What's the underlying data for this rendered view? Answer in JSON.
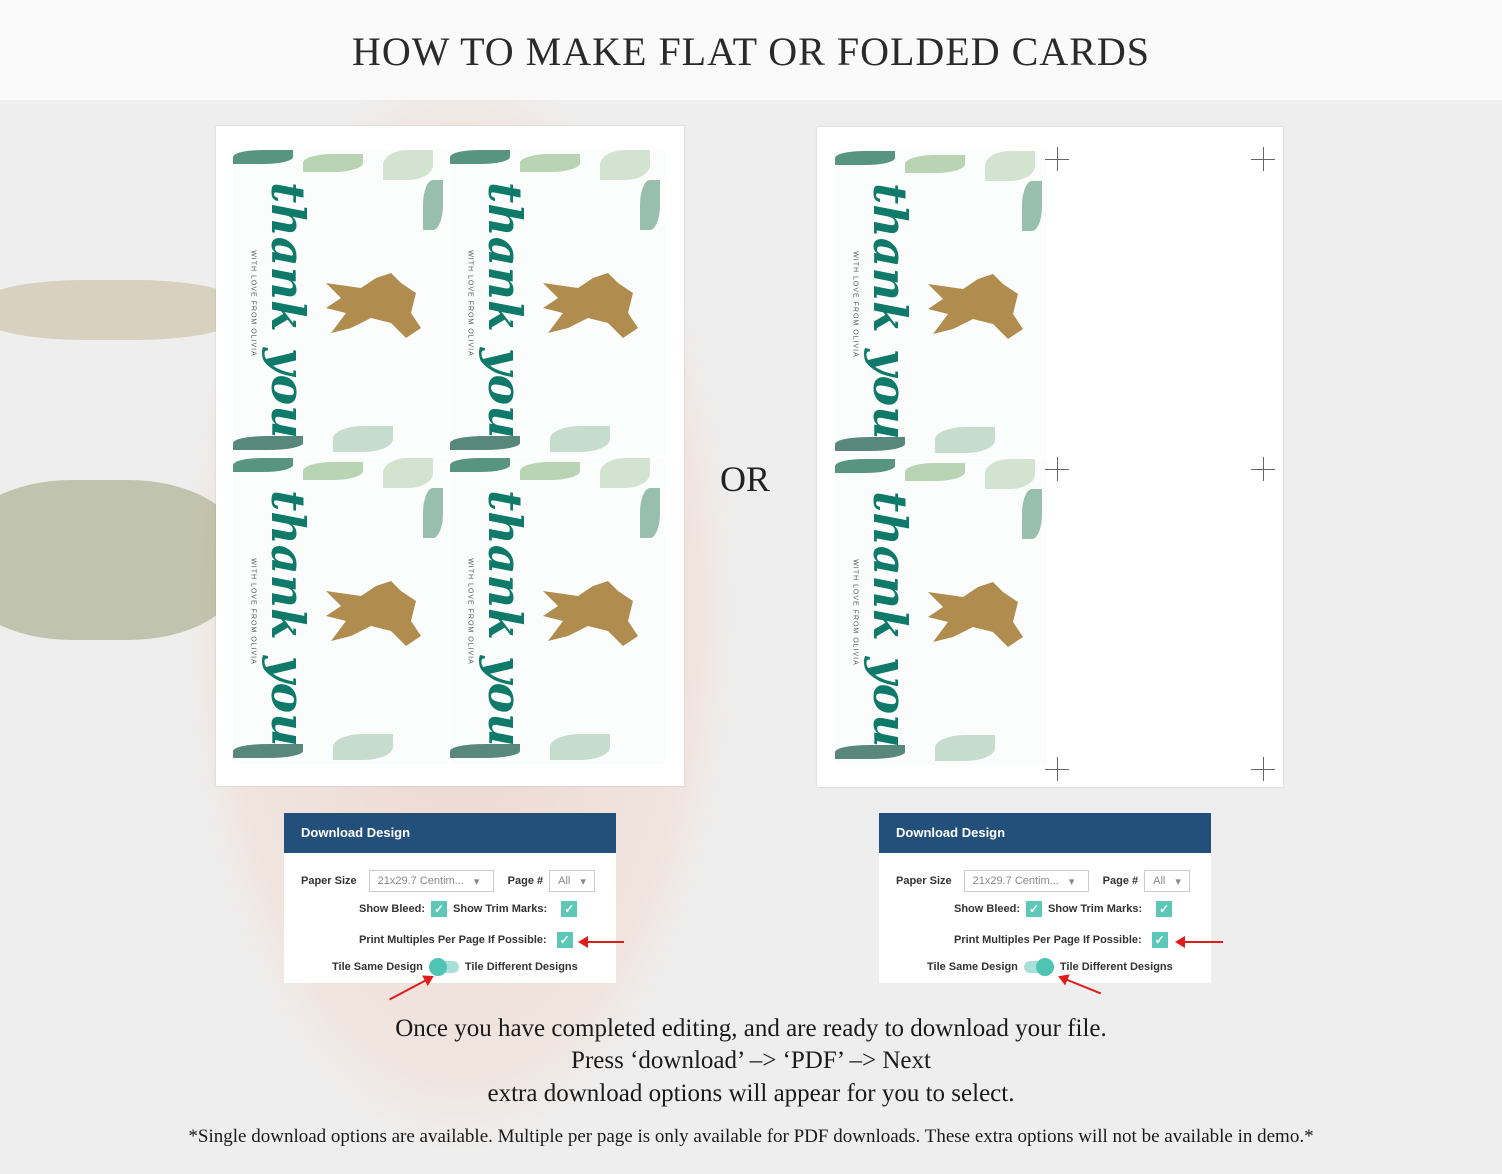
{
  "title": "HOW TO MAKE FLAT OR FOLDED CARDS",
  "or_label": "OR",
  "card": {
    "main_text": "thank you",
    "subtitle": "WITH LOVE FROM OLIVIA"
  },
  "panel": {
    "title": "Download Design",
    "paper_size_label": "Paper Size",
    "paper_size_value": "21x29.7 Centim...",
    "page_label": "Page #",
    "page_value": "All",
    "show_bleed": "Show Bleed:",
    "show_trim": "Show Trim Marks:",
    "print_multiples": "Print Multiples Per Page If Possible:",
    "tile_same": "Tile Same Design",
    "tile_different": "Tile Different Designs",
    "check_icon": "✓"
  },
  "panels_state": [
    {
      "toggle": "same"
    },
    {
      "toggle": "different"
    }
  ],
  "colors": {
    "header": "#22507a",
    "check": "#5ec8b8",
    "arrow": "#e21b1b",
    "text_green": "#0f7a6a"
  },
  "instructions": [
    "Once you have completed editing, and are ready to download your file.",
    "Press ‘download’ –> ‘PDF’ –> Next",
    "extra download options will appear for you to select."
  ],
  "footnote": "*Single download options are available. Multiple per page is only available for PDF downloads. These extra options will not be available in demo.*"
}
